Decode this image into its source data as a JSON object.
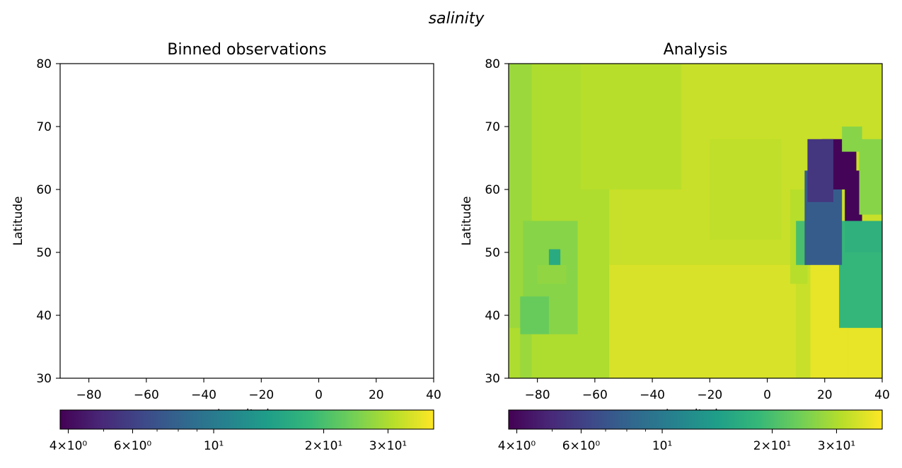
{
  "figure": {
    "suptitle": "salinity"
  },
  "colormap": {
    "name": "viridis",
    "stops": [
      "#440154",
      "#482878",
      "#3e4989",
      "#31688e",
      "#26828e",
      "#1f9e89",
      "#35b779",
      "#6ece58",
      "#b5de2b",
      "#fde725"
    ],
    "scale": "log",
    "range": [
      3.8,
      40
    ]
  },
  "chart_data": [
    {
      "type": "heatmap",
      "title": "Binned observations",
      "xlabel": "Longitude",
      "ylabel": "Latitude",
      "xlim": [
        -90,
        40
      ],
      "ylim": [
        30,
        80
      ],
      "xticks": [
        -80,
        -60,
        -40,
        -20,
        0,
        20,
        40
      ],
      "yticks": [
        30,
        40,
        50,
        60,
        70,
        80
      ],
      "xtick_labels": [
        "−80",
        "−60",
        "−40",
        "−20",
        "0",
        "20",
        "40"
      ],
      "ytick_labels": [
        "30",
        "40",
        "50",
        "60",
        "70",
        "80"
      ],
      "grid": false,
      "cells": [],
      "colorbar": {
        "orientation": "horizontal",
        "scale": "log",
        "range": [
          3.8,
          40
        ],
        "major_ticks": [
          {
            "value": 4,
            "label": "4×10⁰"
          },
          {
            "value": 6,
            "label": "6×10⁰"
          },
          {
            "value": 10,
            "label": "10¹"
          },
          {
            "value": 20,
            "label": "2×10¹"
          },
          {
            "value": 30,
            "label": "3×10¹"
          }
        ],
        "minor_ticks": [
          5,
          7,
          8,
          9
        ]
      }
    },
    {
      "type": "heatmap",
      "title": "Analysis",
      "xlabel": "Longitude",
      "ylabel": "Latitude",
      "xlim": [
        -90,
        40
      ],
      "ylim": [
        30,
        80
      ],
      "xticks": [
        -80,
        -60,
        -40,
        -20,
        0,
        20,
        40
      ],
      "yticks": [
        30,
        40,
        50,
        60,
        70,
        80
      ],
      "xtick_labels": [
        "−80",
        "−60",
        "−40",
        "−20",
        "0",
        "20",
        "40"
      ],
      "ytick_labels": [
        "30",
        "40",
        "50",
        "60",
        "70",
        "80"
      ],
      "grid": false,
      "background_value": 33,
      "regions": [
        {
          "lon": [
            -90,
            -55
          ],
          "lat": [
            30,
            80
          ],
          "value": 30
        },
        {
          "lon": [
            -90,
            -82
          ],
          "lat": [
            30,
            80
          ],
          "value": 28
        },
        {
          "lon": [
            -85,
            -66
          ],
          "lat": [
            37,
            55
          ],
          "value": 26
        },
        {
          "lon": [
            -86,
            -76
          ],
          "lat": [
            37,
            43
          ],
          "value": 23
        },
        {
          "lon": [
            -76,
            -72
          ],
          "lat": [
            45.5,
            50.5
          ],
          "value": 16
        },
        {
          "lon": [
            -80,
            -70
          ],
          "lat": [
            45,
            48
          ],
          "value": 27
        },
        {
          "lon": [
            -90,
            -86
          ],
          "lat": [
            30,
            38
          ],
          "value": 30
        },
        {
          "lon": [
            -55,
            10
          ],
          "lat": [
            30,
            48
          ],
          "value": 35
        },
        {
          "lon": [
            -65,
            -30
          ],
          "lat": [
            60,
            80
          ],
          "value": 31
        },
        {
          "lon": [
            -20,
            5
          ],
          "lat": [
            52,
            68
          ],
          "value": 32
        },
        {
          "lon": [
            8,
            14
          ],
          "lat": [
            45,
            60
          ],
          "value": 31
        },
        {
          "lon": [
            10,
            16
          ],
          "lat": [
            48,
            55
          ],
          "value": 20
        },
        {
          "lon": [
            15,
            28
          ],
          "lat": [
            30,
            50
          ],
          "value": 37
        },
        {
          "lon": [
            28,
            40
          ],
          "lat": [
            30,
            38
          ],
          "value": 37
        },
        {
          "lon": [
            25,
            40
          ],
          "lat": [
            38,
            55
          ],
          "value": 18
        },
        {
          "lon": [
            27,
            40
          ],
          "lat": [
            50,
            55
          ],
          "value": 17
        },
        {
          "lon": [
            13,
            26
          ],
          "lat": [
            48,
            63
          ],
          "value": 7.5
        },
        {
          "lon": [
            19,
            31
          ],
          "lat": [
            60,
            68
          ],
          "value": 3.9
        },
        {
          "lon": [
            27,
            33
          ],
          "lat": [
            55,
            63
          ],
          "value": 3.9
        },
        {
          "lon": [
            14,
            23
          ],
          "lat": [
            58,
            68
          ],
          "value": 5.5
        },
        {
          "lon": [
            32,
            40
          ],
          "lat": [
            56,
            68
          ],
          "value": 26
        },
        {
          "lon": [
            26,
            33
          ],
          "lat": [
            66,
            70
          ],
          "value": 26
        }
      ],
      "colorbar": {
        "orientation": "horizontal",
        "scale": "log",
        "range": [
          3.8,
          40
        ],
        "major_ticks": [
          {
            "value": 4,
            "label": "4×10⁰"
          },
          {
            "value": 6,
            "label": "6×10⁰"
          },
          {
            "value": 10,
            "label": "10¹"
          },
          {
            "value": 20,
            "label": "2×10¹"
          },
          {
            "value": 30,
            "label": "3×10¹"
          }
        ],
        "minor_ticks": [
          5,
          7,
          8,
          9
        ]
      }
    }
  ]
}
